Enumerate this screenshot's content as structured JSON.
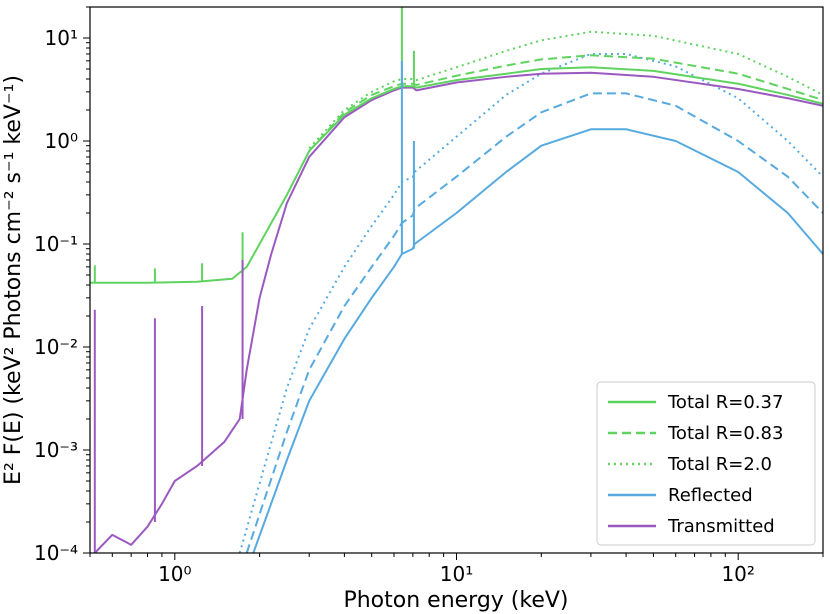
{
  "chart_data": {
    "type": "line",
    "xlabel": "Photon energy (keV)",
    "ylabel": "E² F(E) (keV² Photons cm⁻² s⁻¹ keV⁻¹)",
    "xscale": "log",
    "yscale": "log",
    "xlim": [
      0.5,
      200
    ],
    "ylim": [
      0.0001,
      20
    ],
    "legend_position": "lower-right",
    "x_ticks": [
      {
        "value": 1,
        "label": "10⁰"
      },
      {
        "value": 10,
        "label": "10¹"
      },
      {
        "value": 100,
        "label": "10²"
      }
    ],
    "y_ticks": [
      {
        "value": 0.0001,
        "label": "10⁻⁴"
      },
      {
        "value": 0.001,
        "label": "10⁻³"
      },
      {
        "value": 0.01,
        "label": "10⁻²"
      },
      {
        "value": 0.1,
        "label": "10⁻¹"
      },
      {
        "value": 1,
        "label": "10⁰"
      },
      {
        "value": 10,
        "label": "10¹"
      }
    ],
    "series": [
      {
        "name": "Total R=0.37",
        "color": "#5fd35f",
        "style": "solid",
        "in_legend": true,
        "points": [
          [
            0.5,
            0.042
          ],
          [
            0.8,
            0.042
          ],
          [
            1.2,
            0.043
          ],
          [
            1.6,
            0.046
          ],
          [
            1.8,
            0.06
          ],
          [
            2.0,
            0.1
          ],
          [
            2.5,
            0.3
          ],
          [
            3.0,
            0.8
          ],
          [
            4.0,
            1.8
          ],
          [
            5.0,
            2.6
          ],
          [
            6.0,
            3.2
          ],
          [
            6.4,
            3.4
          ],
          [
            7.0,
            3.4
          ],
          [
            7.2,
            3.3
          ],
          [
            10,
            3.9
          ],
          [
            15,
            4.5
          ],
          [
            20,
            5.0
          ],
          [
            30,
            5.2
          ],
          [
            50,
            4.8
          ],
          [
            100,
            3.6
          ],
          [
            150,
            2.8
          ],
          [
            200,
            2.3
          ]
        ]
      },
      {
        "name": "Total R=0.83",
        "color": "#5fd35f",
        "style": "dashed",
        "in_legend": true,
        "points": [
          [
            3.0,
            0.8
          ],
          [
            4.0,
            1.9
          ],
          [
            5.0,
            2.8
          ],
          [
            6.0,
            3.4
          ],
          [
            6.4,
            3.6
          ],
          [
            7.0,
            3.6
          ],
          [
            7.2,
            3.5
          ],
          [
            10,
            4.3
          ],
          [
            15,
            5.4
          ],
          [
            20,
            6.2
          ],
          [
            30,
            6.8
          ],
          [
            50,
            6.3
          ],
          [
            100,
            4.5
          ],
          [
            150,
            3.2
          ],
          [
            200,
            2.5
          ]
        ]
      },
      {
        "name": "Total R=2.0",
        "color": "#5fd35f",
        "style": "dotted",
        "in_legend": true,
        "points": [
          [
            3.0,
            0.85
          ],
          [
            4.0,
            2.0
          ],
          [
            5.0,
            3.0
          ],
          [
            6.0,
            3.8
          ],
          [
            6.4,
            4.0
          ],
          [
            7.0,
            4.0
          ],
          [
            7.2,
            3.9
          ],
          [
            10,
            5.2
          ],
          [
            15,
            7.5
          ],
          [
            20,
            9.5
          ],
          [
            30,
            11.5
          ],
          [
            50,
            10.5
          ],
          [
            100,
            7.0
          ],
          [
            150,
            4.2
          ],
          [
            200,
            2.8
          ]
        ]
      },
      {
        "name": "Reflected",
        "color": "#56aae0",
        "style": "solid",
        "in_legend": true,
        "points": [
          [
            1.9,
            0.0001
          ],
          [
            2.5,
            0.0008
          ],
          [
            3.0,
            0.003
          ],
          [
            4.0,
            0.012
          ],
          [
            5.0,
            0.03
          ],
          [
            6.0,
            0.06
          ],
          [
            6.4,
            0.08
          ],
          [
            7.0,
            0.09
          ],
          [
            7.1,
            0.1
          ],
          [
            10,
            0.2
          ],
          [
            15,
            0.5
          ],
          [
            20,
            0.9
          ],
          [
            30,
            1.3
          ],
          [
            40,
            1.3
          ],
          [
            60,
            1.0
          ],
          [
            100,
            0.5
          ],
          [
            150,
            0.2
          ],
          [
            200,
            0.08
          ]
        ]
      },
      {
        "name": "Reflected R=0.83",
        "color": "#56aae0",
        "style": "dashed",
        "in_legend": false,
        "points": [
          [
            1.8,
            0.0001
          ],
          [
            2.5,
            0.0015
          ],
          [
            3.0,
            0.006
          ],
          [
            4.0,
            0.025
          ],
          [
            5.0,
            0.06
          ],
          [
            6.0,
            0.12
          ],
          [
            6.4,
            0.16
          ],
          [
            7.0,
            0.19
          ],
          [
            7.1,
            0.22
          ],
          [
            10,
            0.45
          ],
          [
            15,
            1.1
          ],
          [
            20,
            1.9
          ],
          [
            30,
            2.9
          ],
          [
            40,
            2.9
          ],
          [
            60,
            2.2
          ],
          [
            100,
            1.0
          ],
          [
            150,
            0.45
          ],
          [
            200,
            0.2
          ]
        ]
      },
      {
        "name": "Reflected R=2.0",
        "color": "#56aae0",
        "style": "dotted",
        "in_legend": false,
        "points": [
          [
            1.7,
            0.0001
          ],
          [
            2.5,
            0.004
          ],
          [
            3.0,
            0.015
          ],
          [
            4.0,
            0.06
          ],
          [
            5.0,
            0.15
          ],
          [
            6.0,
            0.3
          ],
          [
            6.4,
            0.4
          ],
          [
            7.0,
            0.45
          ],
          [
            7.1,
            0.5
          ],
          [
            10,
            1.1
          ],
          [
            15,
            2.8
          ],
          [
            20,
            4.5
          ],
          [
            30,
            7.0
          ],
          [
            40,
            7.0
          ],
          [
            60,
            5.3
          ],
          [
            100,
            2.6
          ],
          [
            150,
            1.0
          ],
          [
            200,
            0.45
          ]
        ]
      },
      {
        "name": "Transmitted",
        "color": "#9b59c0",
        "style": "solid",
        "in_legend": true,
        "points": [
          [
            0.52,
            0.0001
          ],
          [
            0.6,
            0.00015
          ],
          [
            0.7,
            0.00012
          ],
          [
            0.8,
            0.00018
          ],
          [
            0.9,
            0.0003
          ],
          [
            1.0,
            0.0005
          ],
          [
            1.2,
            0.0007
          ],
          [
            1.5,
            0.0012
          ],
          [
            1.7,
            0.002
          ],
          [
            1.8,
            0.006
          ],
          [
            2.0,
            0.03
          ],
          [
            2.2,
            0.08
          ],
          [
            2.5,
            0.25
          ],
          [
            3.0,
            0.7
          ],
          [
            4.0,
            1.7
          ],
          [
            5.0,
            2.5
          ],
          [
            6.0,
            3.1
          ],
          [
            6.4,
            3.3
          ],
          [
            7.0,
            3.3
          ],
          [
            7.2,
            3.1
          ],
          [
            10,
            3.7
          ],
          [
            15,
            4.2
          ],
          [
            20,
            4.5
          ],
          [
            30,
            4.6
          ],
          [
            50,
            4.2
          ],
          [
            100,
            3.2
          ],
          [
            150,
            2.6
          ],
          [
            200,
            2.2
          ]
        ]
      }
    ],
    "emission_lines": [
      {
        "series": "Total R=0.37",
        "x": 0.52,
        "y_base": 0.042,
        "y_peak": 0.062
      },
      {
        "series": "Total R=0.37",
        "x": 0.85,
        "y_base": 0.042,
        "y_peak": 0.058
      },
      {
        "series": "Total R=0.37",
        "x": 1.25,
        "y_base": 0.043,
        "y_peak": 0.065
      },
      {
        "series": "Total R=0.37",
        "x": 1.74,
        "y_base": 0.05,
        "y_peak": 0.13
      },
      {
        "series": "Total R=0.37",
        "x": 6.4,
        "y_base": 3.4,
        "y_peak": 20
      },
      {
        "series": "Total R=0.37",
        "x": 7.06,
        "y_base": 3.4,
        "y_peak": 7.5
      },
      {
        "series": "Transmitted",
        "x": 0.52,
        "y_base": 0.0001,
        "y_peak": 0.023
      },
      {
        "series": "Transmitted",
        "x": 0.85,
        "y_base": 0.0002,
        "y_peak": 0.019
      },
      {
        "series": "Transmitted",
        "x": 1.25,
        "y_base": 0.0007,
        "y_peak": 0.025
      },
      {
        "series": "Transmitted",
        "x": 1.74,
        "y_base": 0.002,
        "y_peak": 0.07
      },
      {
        "series": "Reflected",
        "x": 6.4,
        "y_base": 0.08,
        "y_peak": 6.0
      },
      {
        "series": "Reflected",
        "x": 7.06,
        "y_base": 0.09,
        "y_peak": 1.0
      }
    ]
  }
}
